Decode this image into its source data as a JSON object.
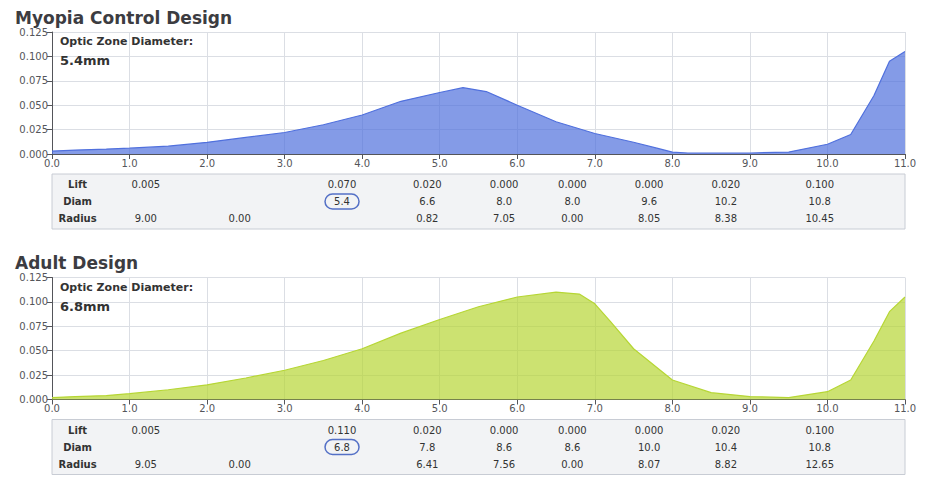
{
  "chart_data": [
    {
      "type": "area",
      "title": "Myopia Control Design",
      "annotations": [
        "Optic Zone Diameter:",
        "5.4mm"
      ],
      "x": [
        0.0,
        0.3,
        0.7,
        1.0,
        1.5,
        2.0,
        2.5,
        3.0,
        3.5,
        4.0,
        4.5,
        5.0,
        5.3,
        5.6,
        6.0,
        6.5,
        7.0,
        7.5,
        7.8,
        8.0,
        8.2,
        8.5,
        9.0,
        9.5,
        10.0,
        10.3,
        10.6,
        10.8,
        11.0
      ],
      "values": [
        0.003,
        0.004,
        0.005,
        0.006,
        0.008,
        0.012,
        0.017,
        0.022,
        0.03,
        0.04,
        0.054,
        0.063,
        0.068,
        0.064,
        0.05,
        0.033,
        0.021,
        0.012,
        0.006,
        0.002,
        0.001,
        0.001,
        0.001,
        0.002,
        0.01,
        0.02,
        0.06,
        0.095,
        0.105
      ],
      "xlim": [
        0.0,
        11.0
      ],
      "xticks": [
        {
          "value": 0,
          "label": "0.0"
        },
        {
          "value": 1,
          "label": "1.0"
        },
        {
          "value": 2,
          "label": "2.0"
        },
        {
          "value": 3,
          "label": "3.0"
        },
        {
          "value": 4,
          "label": "4.0"
        },
        {
          "value": 5,
          "label": "5.0"
        },
        {
          "value": 6,
          "label": "6.0"
        },
        {
          "value": 7,
          "label": "7.0"
        },
        {
          "value": 8,
          "label": "8.0"
        },
        {
          "value": 9,
          "label": "9.0"
        },
        {
          "value": 10,
          "label": "10.0"
        },
        {
          "value": 11,
          "label": "11.0"
        }
      ],
      "ylim": [
        0.0,
        0.125
      ],
      "yticks": [
        {
          "value": 0,
          "label": "0.000"
        },
        0.025,
        {
          "value": 0.05,
          "label": "0.050"
        },
        0.075,
        {
          "value": 0.1,
          "label": "0.100"
        },
        0.125
      ],
      "grid": true,
      "table": {
        "rows": [
          {
            "label": "Lift",
            "cells": [
              "0.005",
              null,
              "0.070",
              "0.020",
              "0.000",
              "0.000",
              "0.000",
              "0.020",
              "0.100"
            ]
          },
          {
            "label": "Diam",
            "cells": [
              null,
              null,
              "5.4",
              "6.6",
              "8.0",
              "8.0",
              "9.6",
              "10.2",
              "10.8"
            ]
          },
          {
            "label": "Radius",
            "cells": [
              "9.00",
              "0.00",
              null,
              "0.82",
              "7.05",
              "0.00",
              "8.05",
              "8.38",
              "10.45"
            ]
          }
        ],
        "circled": "5.4"
      }
    },
    {
      "type": "area",
      "title": "Adult Design",
      "annotations": [
        "Optic Zone Diameter:",
        "6.8mm"
      ],
      "x": [
        0.0,
        0.3,
        0.7,
        1.0,
        1.5,
        2.0,
        2.5,
        3.0,
        3.5,
        4.0,
        4.5,
        5.0,
        5.5,
        6.0,
        6.5,
        6.8,
        7.0,
        7.2,
        7.5,
        8.0,
        8.5,
        9.0,
        9.5,
        10.0,
        10.3,
        10.6,
        10.8,
        11.0
      ],
      "values": [
        0.002,
        0.003,
        0.004,
        0.006,
        0.01,
        0.015,
        0.022,
        0.03,
        0.04,
        0.052,
        0.068,
        0.082,
        0.095,
        0.105,
        0.11,
        0.108,
        0.098,
        0.08,
        0.052,
        0.02,
        0.007,
        0.003,
        0.002,
        0.008,
        0.02,
        0.06,
        0.09,
        0.105
      ],
      "xlim": [
        0.0,
        11.0
      ],
      "xticks": [
        {
          "value": 0,
          "label": "0.0"
        },
        {
          "value": 1,
          "label": "1.0"
        },
        {
          "value": 2,
          "label": "2.0"
        },
        {
          "value": 3,
          "label": "3.0"
        },
        {
          "value": 4,
          "label": "4.0"
        },
        {
          "value": 5,
          "label": "5.0"
        },
        {
          "value": 6,
          "label": "6.0"
        },
        {
          "value": 7,
          "label": "7.0"
        },
        {
          "value": 8,
          "label": "8.0"
        },
        {
          "value": 9,
          "label": "9.0"
        },
        {
          "value": 10,
          "label": "10.0"
        },
        {
          "value": 11,
          "label": "11.0"
        }
      ],
      "ylim": [
        0.0,
        0.125
      ],
      "yticks": [
        {
          "value": 0,
          "label": "0.000"
        },
        0.025,
        {
          "value": 0.05,
          "label": "0.050"
        },
        0.075,
        {
          "value": 0.1,
          "label": "0.100"
        },
        0.125
      ],
      "grid": true,
      "table": {
        "rows": [
          {
            "label": "Lift",
            "cells": [
              "0.005",
              null,
              "0.110",
              "0.020",
              "0.000",
              "0.000",
              "0.000",
              "0.020",
              "0.100"
            ]
          },
          {
            "label": "Diam",
            "cells": [
              null,
              null,
              "6.8",
              "7.8",
              "8.6",
              "8.6",
              "10.0",
              "10.4",
              "10.8"
            ]
          },
          {
            "label": "Radius",
            "cells": [
              "9.05",
              "0.00",
              null,
              "6.41",
              "7.56",
              "0.00",
              "8.07",
              "8.82",
              "12.65"
            ]
          }
        ],
        "circled": "6.8"
      }
    }
  ]
}
